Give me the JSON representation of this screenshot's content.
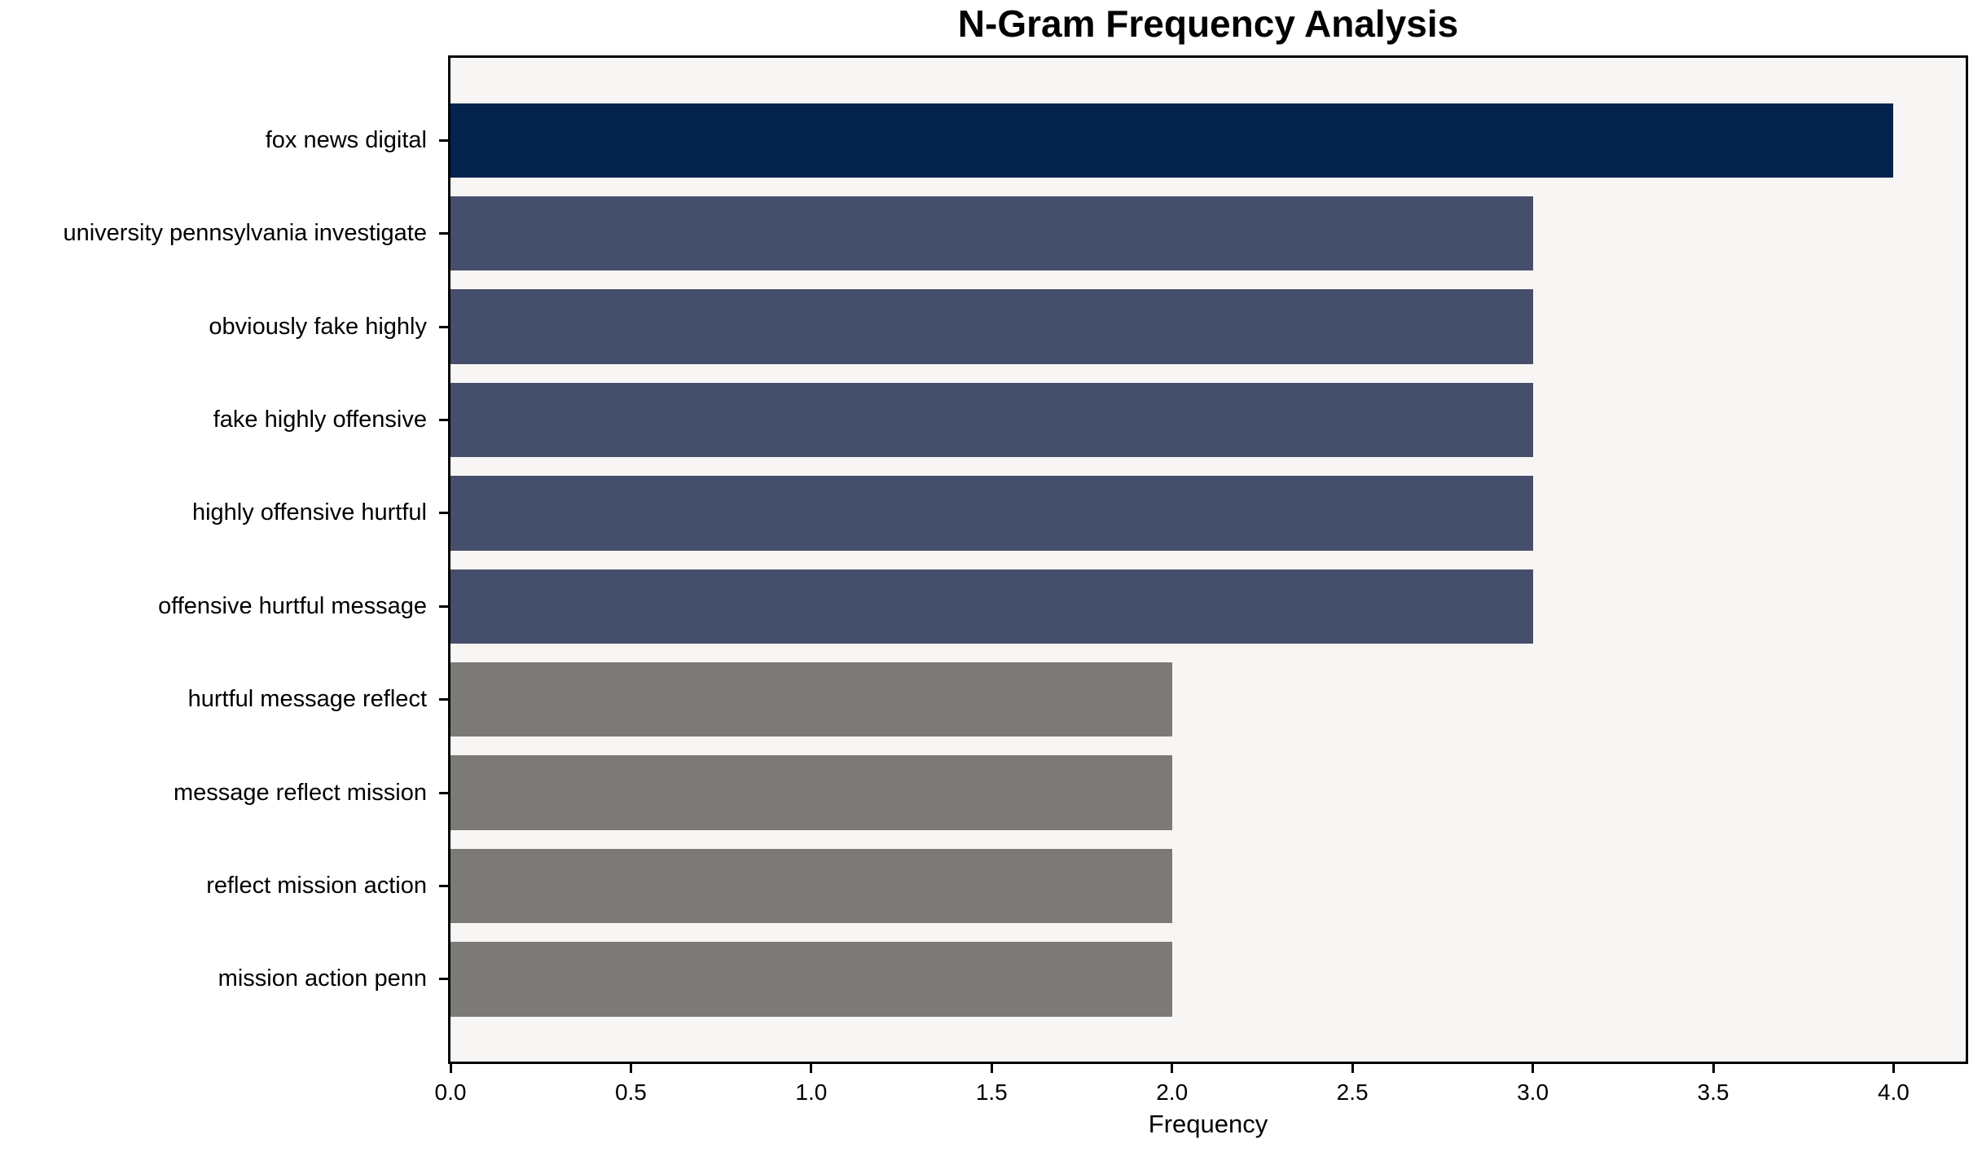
{
  "chart_data": {
    "type": "bar",
    "orientation": "horizontal",
    "title": "N-Gram Frequency Analysis",
    "xlabel": "Frequency",
    "ylabel": "",
    "categories": [
      "fox news digital",
      "university pennsylvania investigate",
      "obviously fake highly",
      "fake highly offensive",
      "highly offensive hurtful",
      "offensive hurtful message",
      "hurtful message reflect",
      "message reflect mission",
      "reflect mission action",
      "mission action penn"
    ],
    "values": [
      4,
      3,
      3,
      3,
      3,
      3,
      2,
      2,
      2,
      2
    ],
    "bar_colors": [
      "#03234d",
      "#454e6b",
      "#454e6b",
      "#454e6b",
      "#454e6b",
      "#454e6b",
      "#7b7a77",
      "#7b7a77",
      "#7b7a77",
      "#7b7a77"
    ],
    "xlim": [
      0,
      4.2
    ],
    "xticks": [
      0,
      0.5,
      1,
      1.5,
      2,
      2.5,
      3,
      3.5,
      4
    ],
    "xtick_labels": [
      "0.0",
      "0.5",
      "1.0",
      "1.5",
      "2.0",
      "2.5",
      "3.0",
      "3.5",
      "4.0"
    ],
    "grid": false,
    "legend": "none",
    "plot_background": "#f7f6f5",
    "figure_background": "#ffffff",
    "axis_color": "#000000",
    "title_color": "#000000"
  }
}
